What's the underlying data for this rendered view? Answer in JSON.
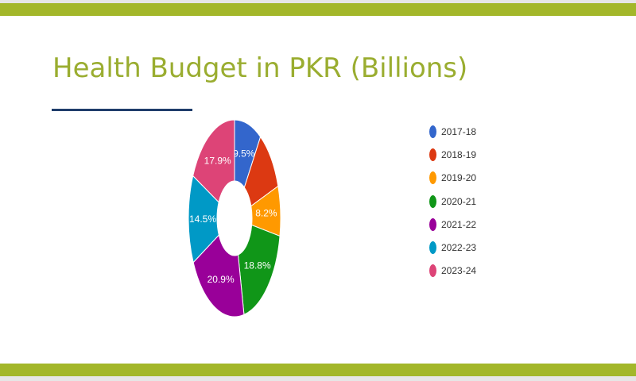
{
  "slide": {
    "title": "Health Budget in PKR (Billions)",
    "accent_color": "#a3b72a",
    "title_color": "#9aad30",
    "rule_color": "#1f3d6b"
  },
  "chart_data": {
    "type": "pie",
    "donut": true,
    "legend_position": "right",
    "categories": [
      "2017-18",
      "2018-19",
      "2019-20",
      "2020-21",
      "2021-22",
      "2022-23",
      "2023-24"
    ],
    "values": [
      9.5,
      10.2,
      8.2,
      18.8,
      20.9,
      14.5,
      17.9
    ],
    "labels": [
      "9.5%",
      "",
      "8.2%",
      "18.8%",
      "20.9%",
      "14.5%",
      "17.9%"
    ],
    "colors": [
      "#3366cc",
      "#dc3912",
      "#ff9900",
      "#109618",
      "#990099",
      "#0099c6",
      "#dd4477"
    ]
  }
}
